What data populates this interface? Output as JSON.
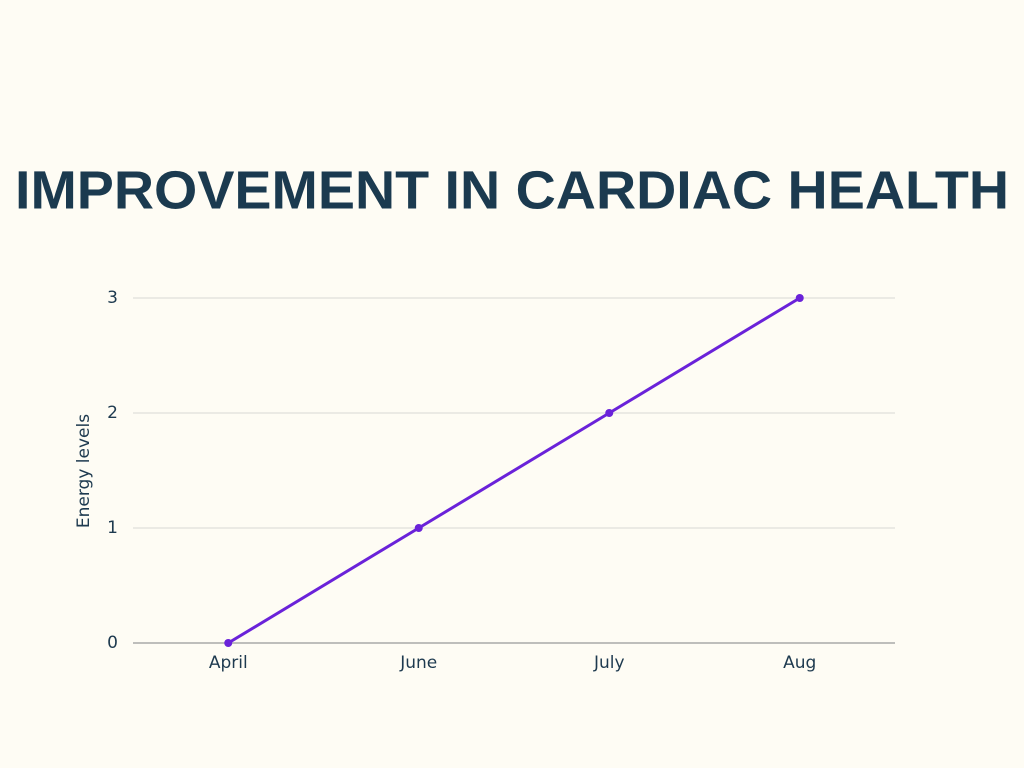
{
  "chart_data": {
    "type": "line",
    "title": "IMPROVEMENT IN CARDIAC HEALTH",
    "y_label": "Energy levels",
    "categories": [
      "April",
      "June",
      "July",
      "Aug"
    ],
    "values": [
      0,
      1,
      2,
      3
    ],
    "color": "#6a22d9",
    "ylim": [
      0,
      3
    ],
    "yticks": [
      0,
      1,
      2,
      3
    ],
    "grid": true
  }
}
